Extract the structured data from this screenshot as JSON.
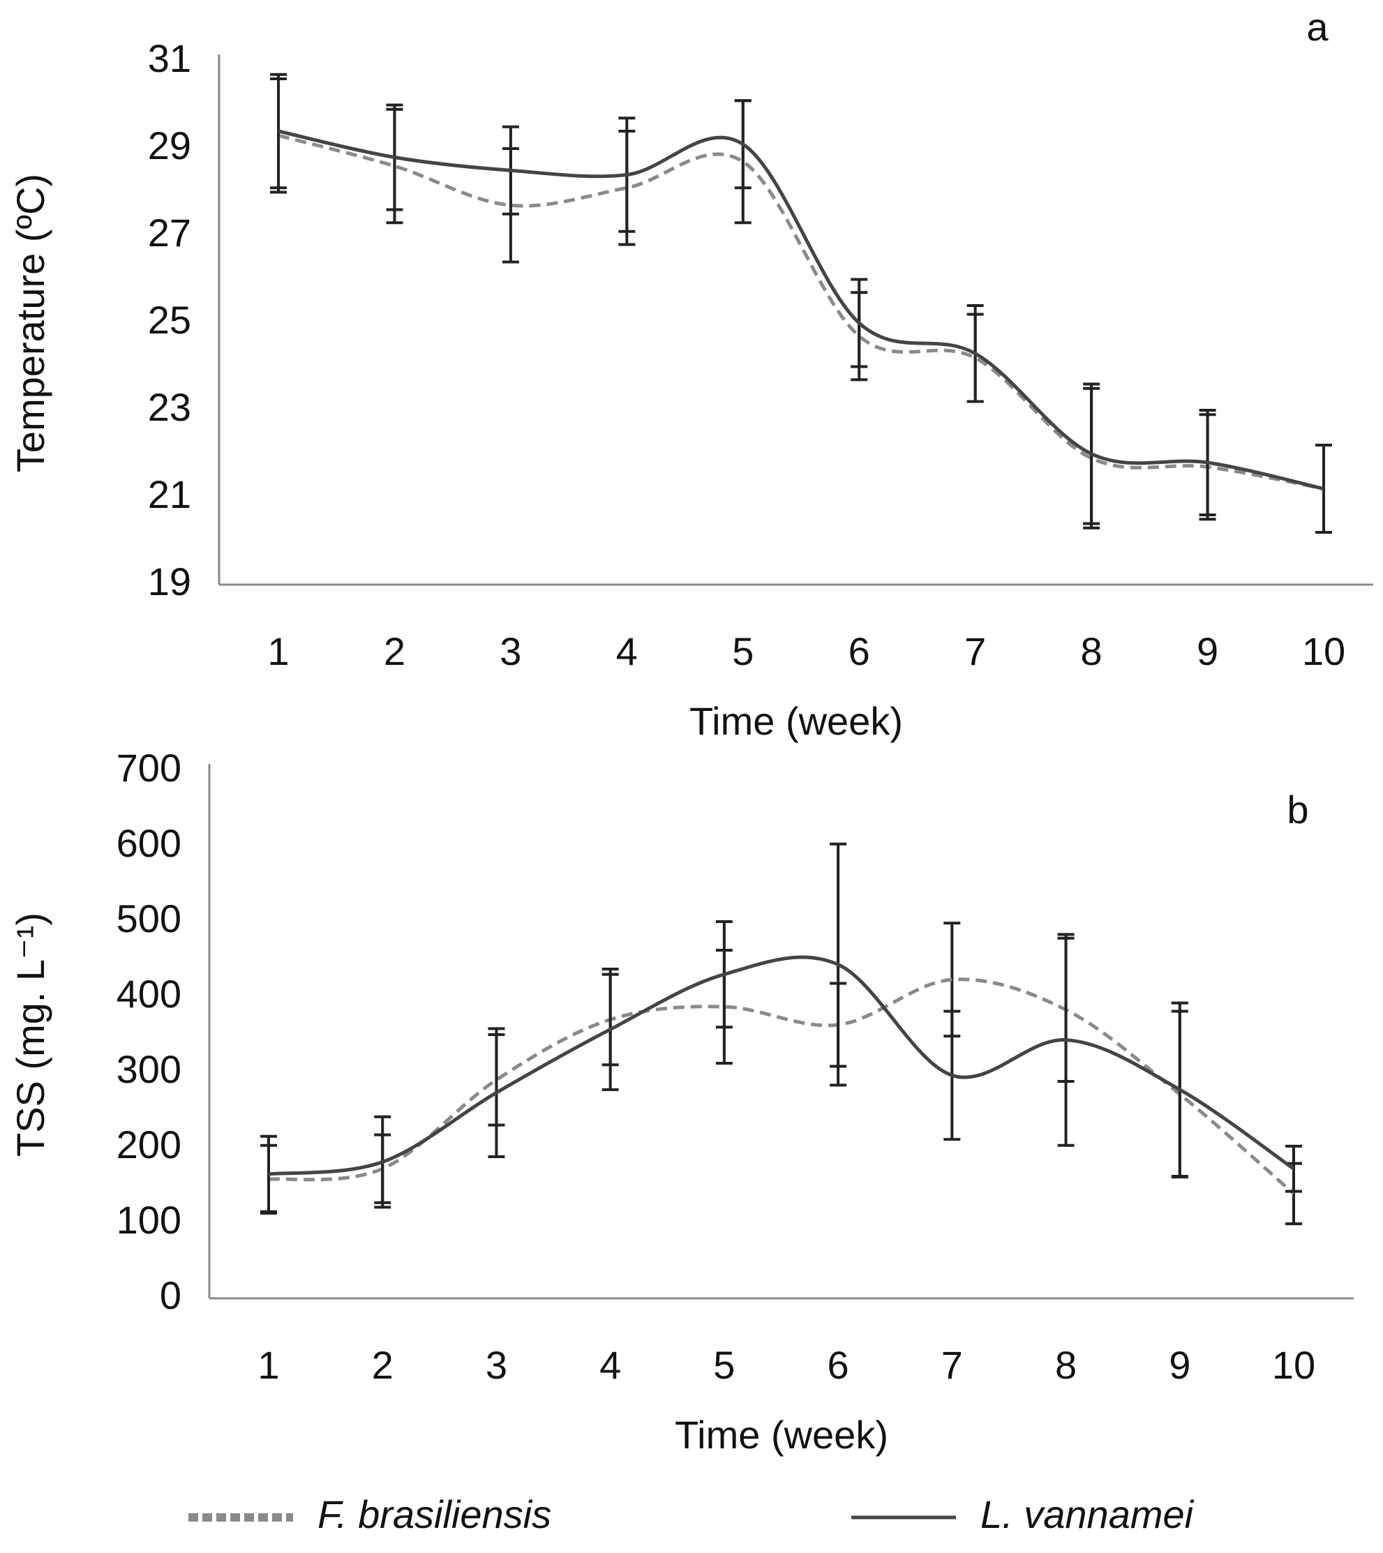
{
  "chart_data": [
    {
      "type": "line",
      "annotation": "a",
      "xlabel": "Time (week)",
      "ylabel": "Temperature (ºC)",
      "categories": [
        "1",
        "2",
        "3",
        "4",
        "5",
        "6",
        "7",
        "8",
        "9",
        "10"
      ],
      "ylim": [
        19,
        31
      ],
      "yticks": [
        19,
        21,
        23,
        25,
        27,
        29,
        31
      ],
      "series": [
        {
          "name": "F. brasiliensis",
          "color": "#8a8a8a",
          "dashed": true,
          "values": [
            29.3,
            28.6,
            27.7,
            28.1,
            28.7,
            24.7,
            24.2,
            21.9,
            21.7,
            21.2
          ],
          "errors": [
            1.3,
            1.3,
            1.3,
            1.3,
            1.4,
            1.0,
            1.0,
            1.6,
            1.2,
            1.0
          ]
        },
        {
          "name": "L. vannamei",
          "color": "#444444",
          "dashed": false,
          "values": [
            29.4,
            28.8,
            28.5,
            28.4,
            29.1,
            25.0,
            24.3,
            22.0,
            21.8,
            21.2
          ],
          "errors": [
            1.3,
            1.2,
            1.0,
            1.3,
            1.0,
            1.0,
            1.1,
            1.6,
            1.2,
            1.0
          ]
        }
      ]
    },
    {
      "type": "line",
      "annotation": "b",
      "xlabel": "Time (week)",
      "ylabel": "TSS (mg. L⁻¹)",
      "categories": [
        "1",
        "2",
        "3",
        "4",
        "5",
        "6",
        "7",
        "8",
        "9",
        "10"
      ],
      "ylim": [
        0,
        700
      ],
      "yticks": [
        0,
        100,
        200,
        300,
        400,
        500,
        600,
        700
      ],
      "series": [
        {
          "color": "#8a8a8a",
          "dashed": true,
          "values": [
            158,
            172,
            290,
            370,
            387,
            363,
            423,
            383,
            271,
            139
          ],
          "errors": [
            45,
            45,
            60,
            60,
            75,
            55,
            75,
            95,
            110,
            40
          ]
        },
        {
          "color": "#444444",
          "dashed": false,
          "values": [
            165,
            181,
            273,
            357,
            430,
            443,
            296,
            343,
            277,
            172
          ],
          "errors": [
            50,
            60,
            85,
            80,
            70,
            160,
            85,
            140,
            115,
            30
          ]
        }
      ]
    }
  ]
}
